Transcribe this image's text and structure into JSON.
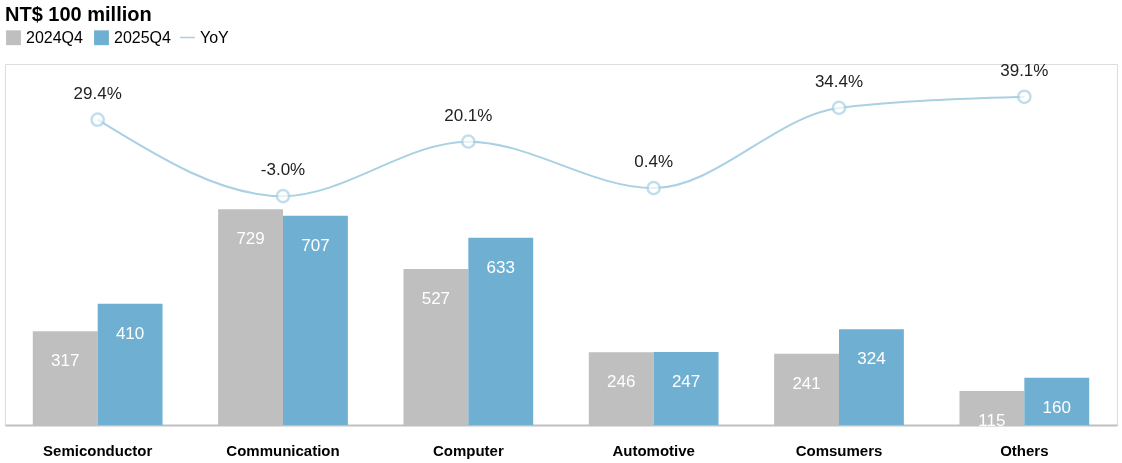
{
  "chart_data": {
    "type": "bar",
    "title": "NT$ 100 million",
    "categories": [
      "Semiconductor",
      "Communication",
      "Computer",
      "Automotive",
      "Comsumers",
      "Others"
    ],
    "series": [
      {
        "name": "2024Q4",
        "color": "#bfbfbf",
        "values": [
          317,
          729,
          527,
          246,
          241,
          115
        ]
      },
      {
        "name": "2025Q4",
        "color": "#6fb0d2",
        "values": [
          410,
          707,
          633,
          247,
          324,
          160
        ]
      },
      {
        "name": "YoY",
        "type": "line",
        "axis": "y2",
        "color": "#a9d1e3",
        "values": [
          29.4,
          -3.0,
          20.1,
          0.4,
          34.4,
          39.1
        ],
        "value_labels": [
          "29.4%",
          "-3.0%",
          "20.1%",
          "0.4%",
          "34.4%",
          "39.1%"
        ]
      }
    ],
    "data_labels": true,
    "ylim": [
      0,
      1220
    ],
    "y2lim": [
      -100,
      53
    ],
    "legend": "top",
    "marker": "circle",
    "grid": false
  }
}
